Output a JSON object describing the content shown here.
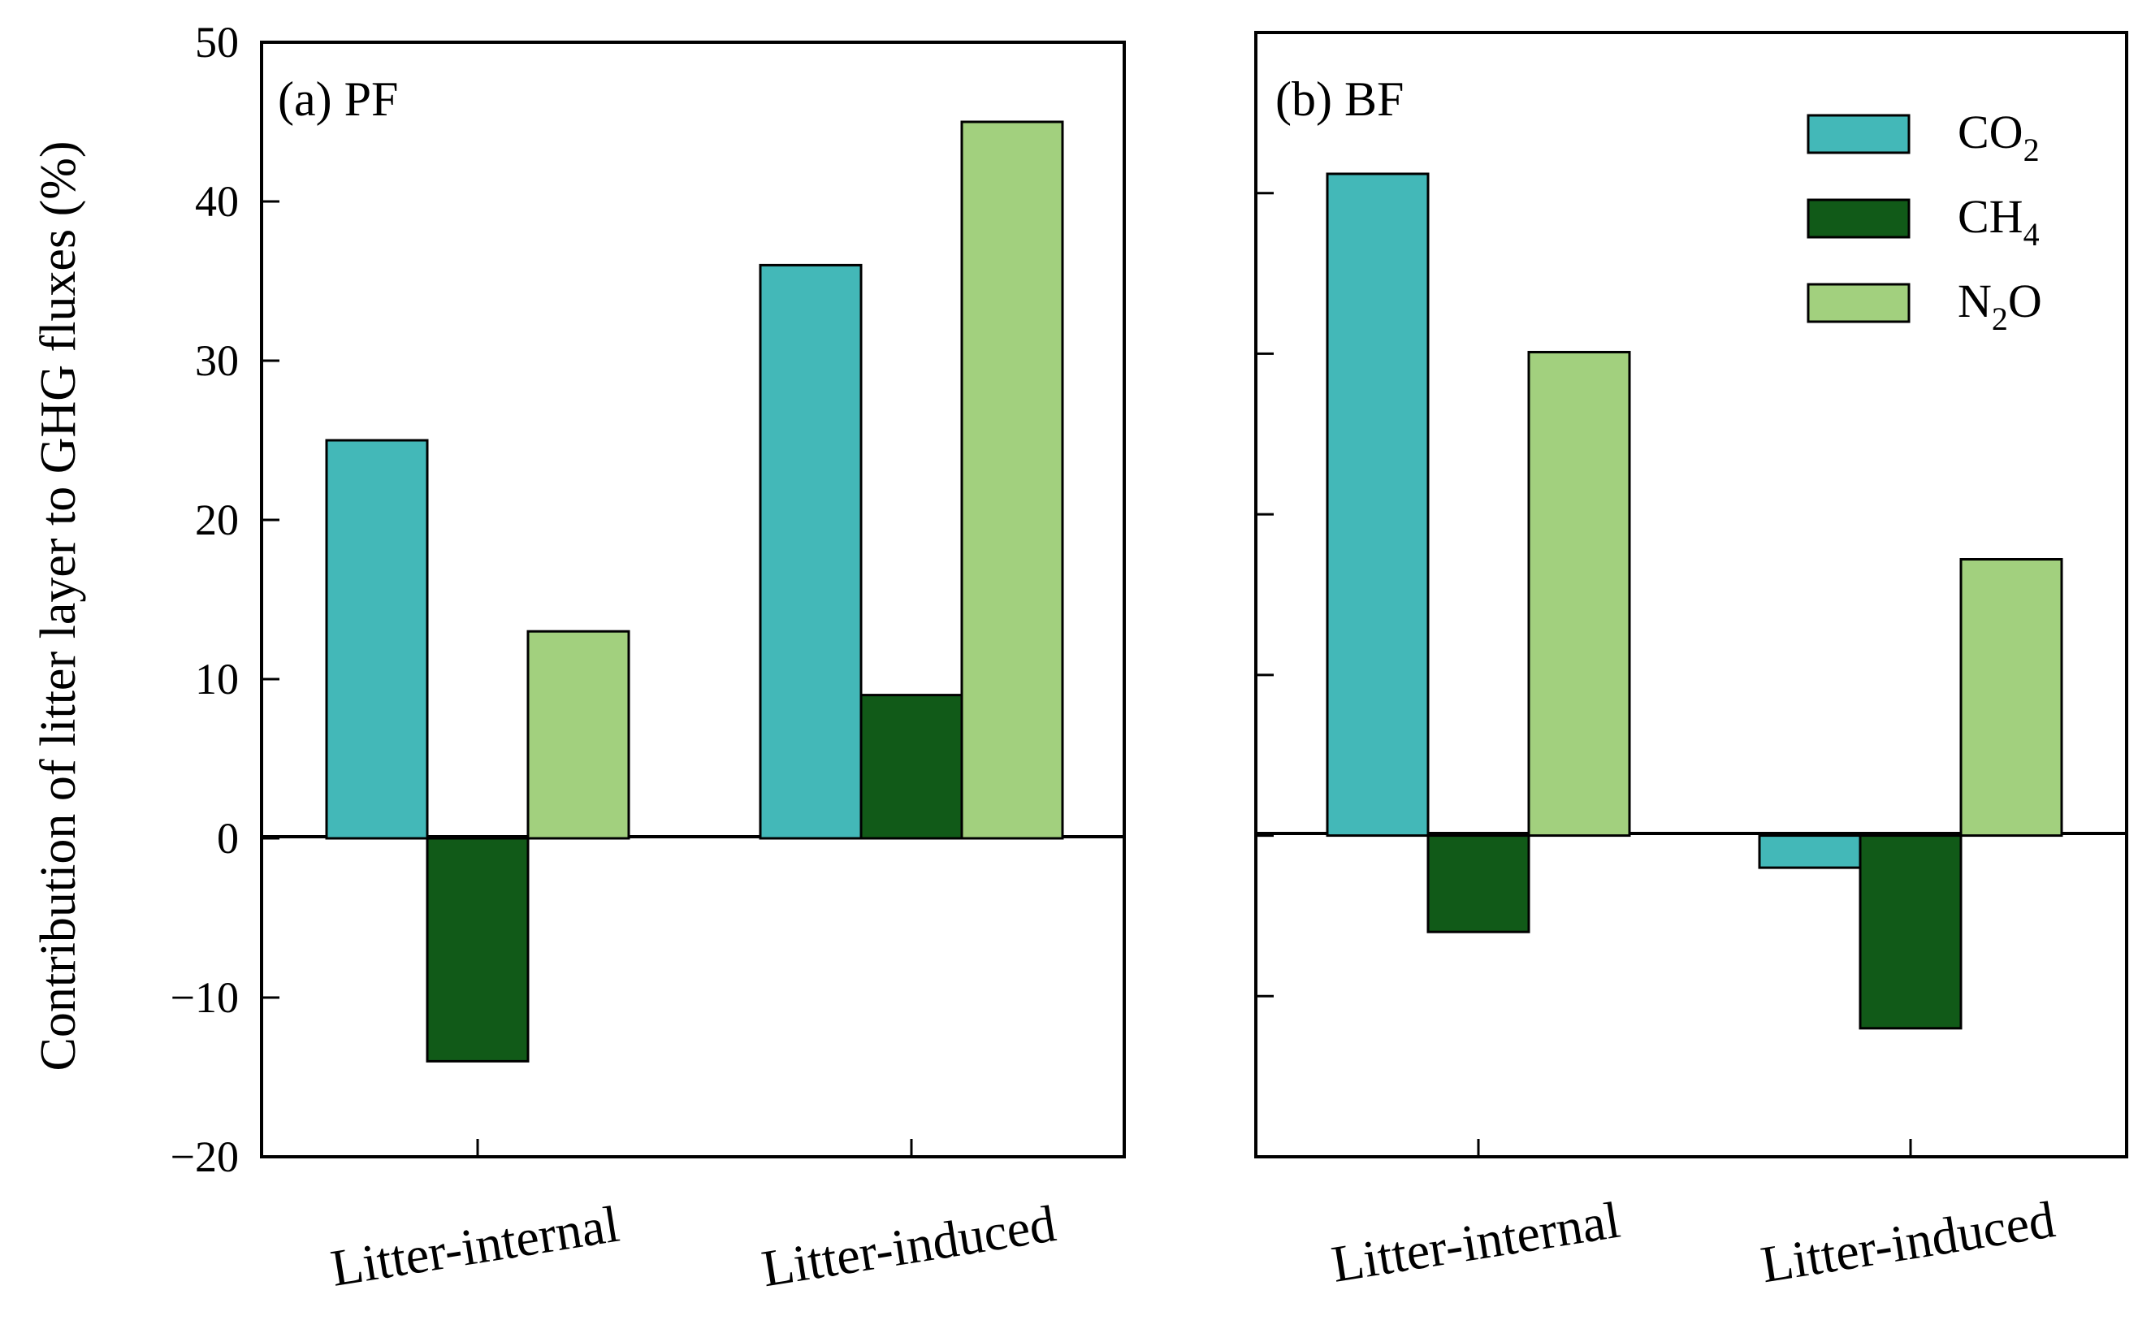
{
  "chart_data": [
    {
      "type": "bar",
      "title": "(a) PF",
      "ylabel": "Contribution of litter layer to GHG fluxes (%)",
      "ylim": [
        -20,
        50
      ],
      "yticks": [
        -20,
        -10,
        0,
        10,
        20,
        30,
        40,
        50
      ],
      "ytick_labels": [
        "−20",
        "−10",
        "0",
        "10",
        "20",
        "30",
        "40",
        "50"
      ],
      "categories": [
        "Litter-internal",
        "Litter-induced"
      ],
      "series": [
        {
          "name": "CO2",
          "color": "#43B8B8",
          "values": [
            25,
            36
          ]
        },
        {
          "name": "CH4",
          "color": "#115A18",
          "values": [
            -14,
            9
          ]
        },
        {
          "name": "N2O",
          "color": "#A2D07E",
          "values": [
            13,
            45
          ]
        }
      ]
    },
    {
      "type": "bar",
      "title": "(b) BF",
      "ylim": [
        -20,
        50
      ],
      "yticks": [
        -20,
        -10,
        0,
        10,
        20,
        30,
        40,
        50
      ],
      "categories": [
        "Litter-internal",
        "Litter-induced"
      ],
      "series": [
        {
          "name": "CO2",
          "color": "#43B8B8",
          "values": [
            41.2,
            -2
          ]
        },
        {
          "name": "CH4",
          "color": "#115A18",
          "values": [
            -6,
            -12
          ]
        },
        {
          "name": "N2O",
          "color": "#A2D07E",
          "values": [
            30.1,
            17.2
          ]
        }
      ],
      "legend": {
        "position": "top-right",
        "entries": [
          {
            "base": "CO",
            "sub": "2",
            "rest": ""
          },
          {
            "base": "CH",
            "sub": "4",
            "rest": ""
          },
          {
            "base": "N",
            "sub": "2",
            "rest": "O"
          }
        ]
      }
    }
  ]
}
